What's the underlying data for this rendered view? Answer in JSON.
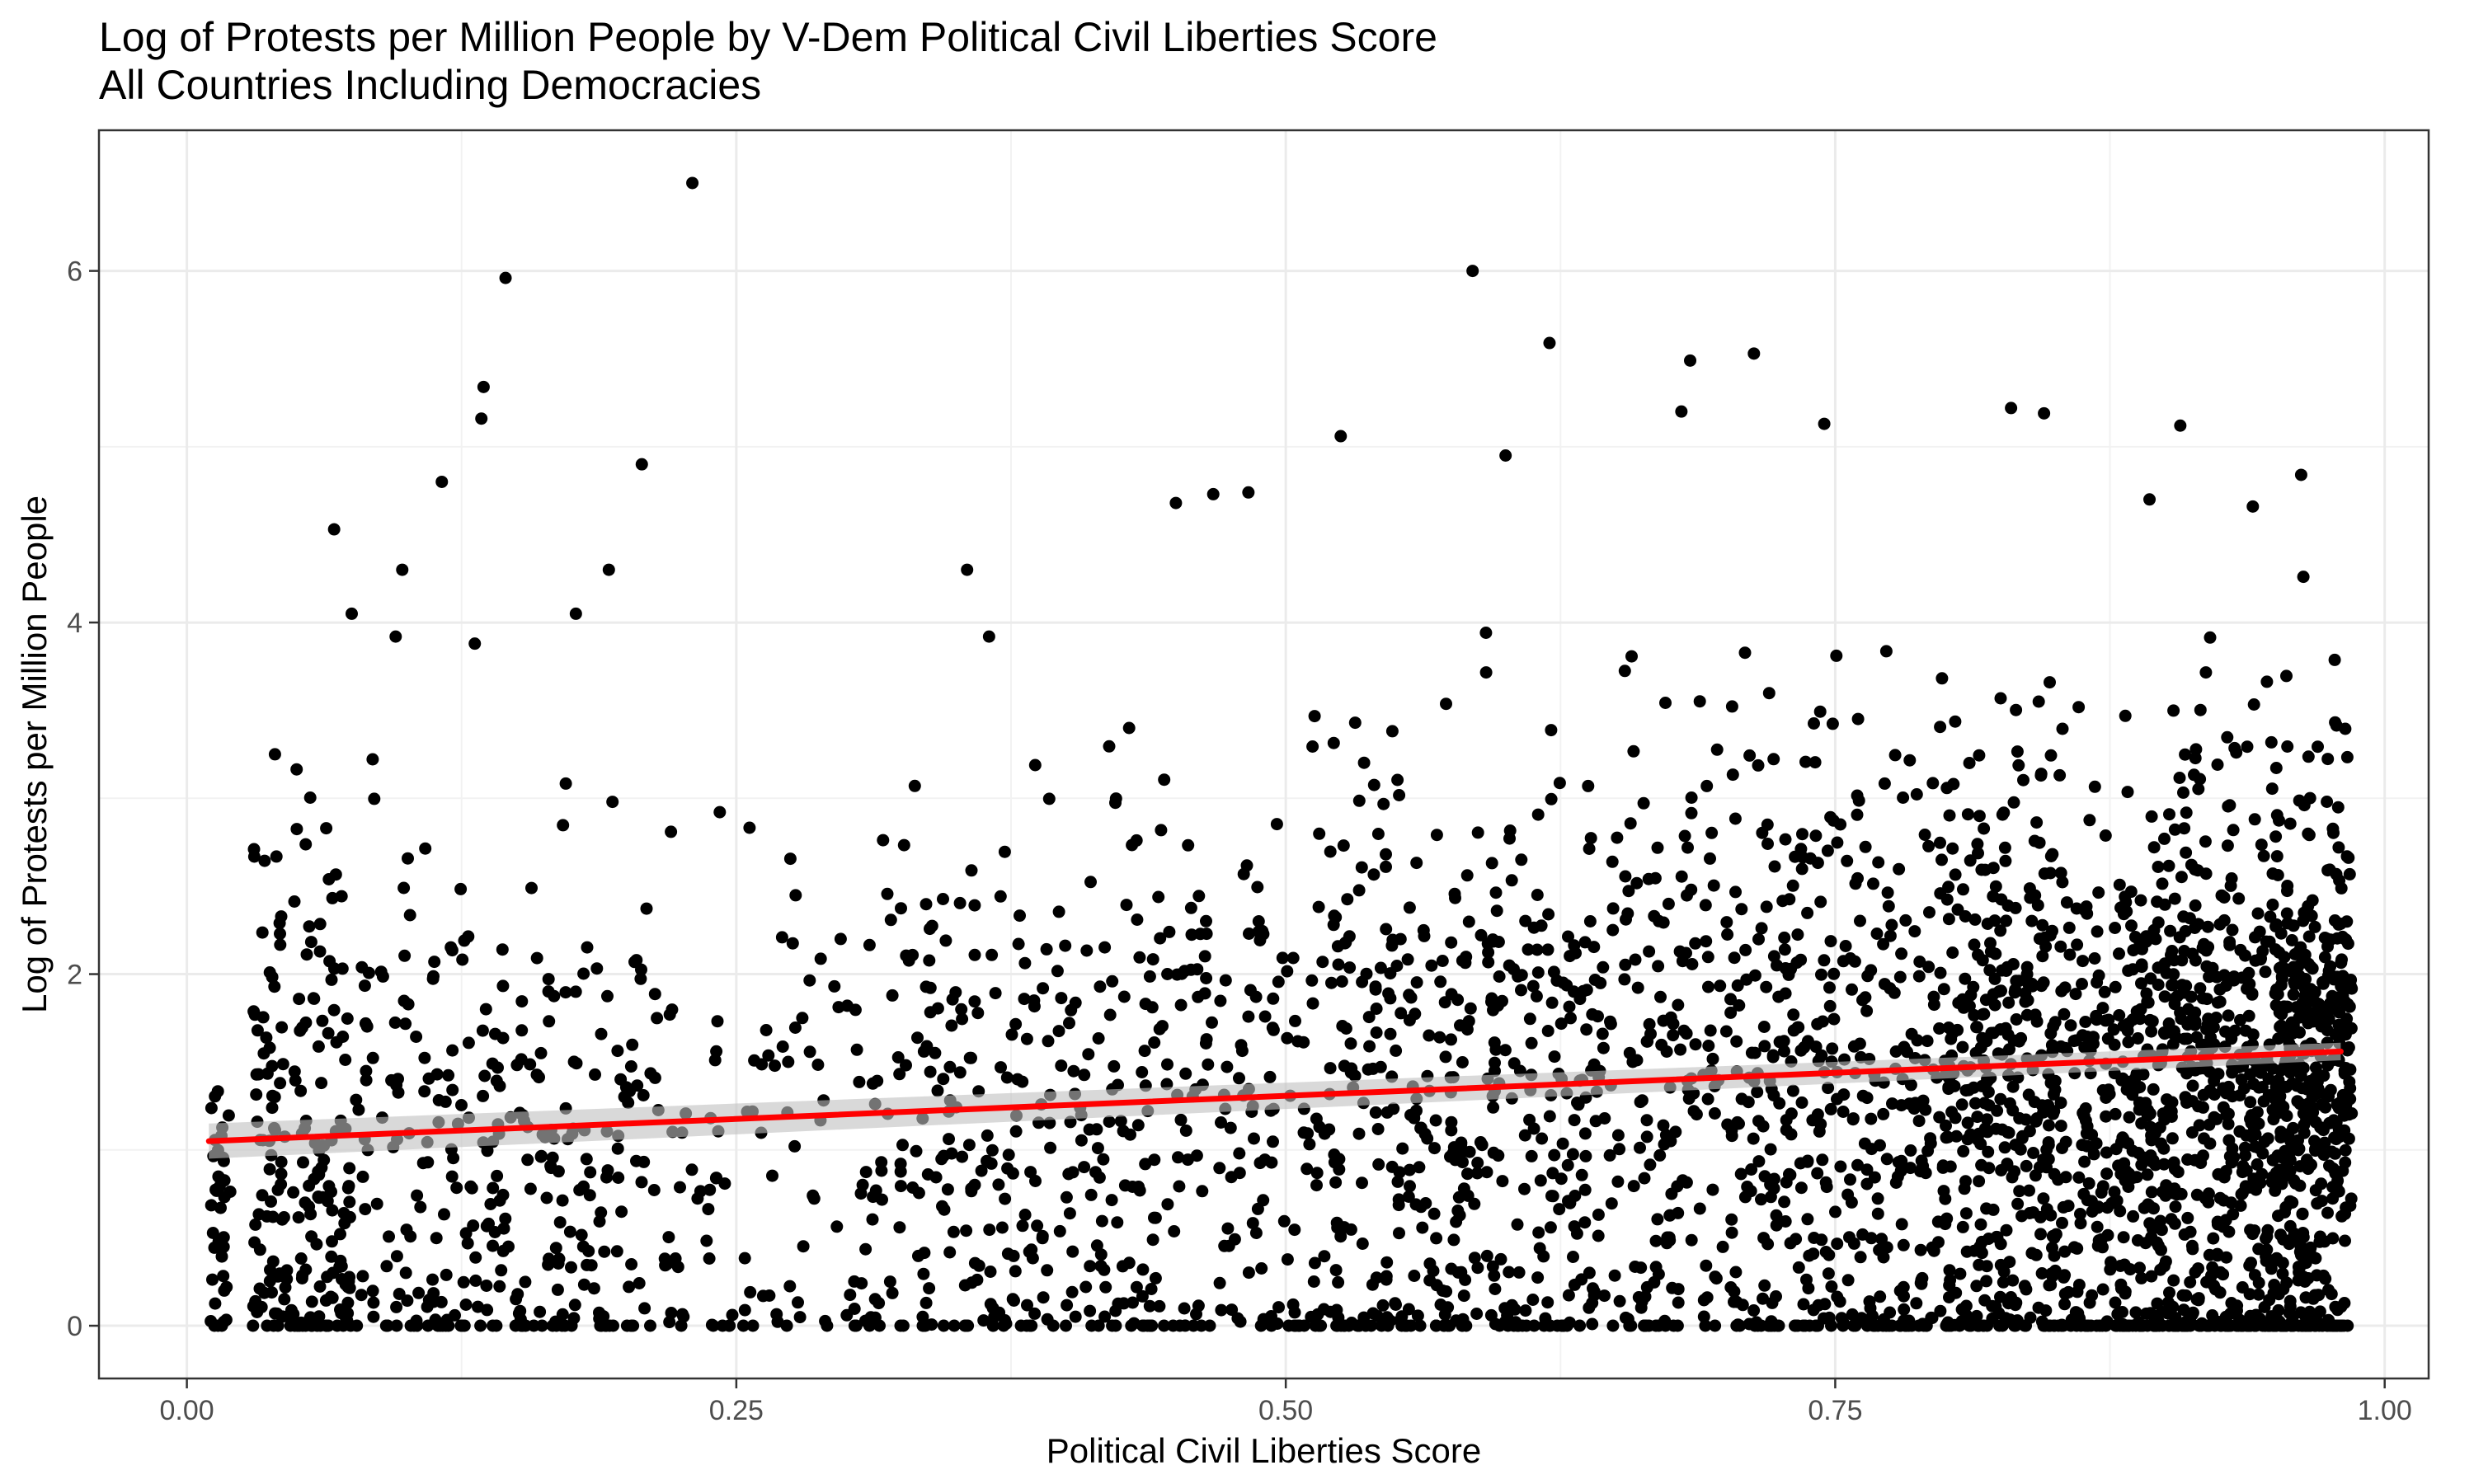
{
  "chart_data": {
    "type": "scatter",
    "title": "Log of Protests per Million People by V-Dem Political Civil Liberties Score",
    "subtitle": "All Countries Including Democracies",
    "xlabel": "Political Civil Liberties Score",
    "ylabel": "Log of Protests per Million People",
    "xlim": [
      -0.04,
      1.02
    ],
    "ylim": [
      -0.3,
      6.8
    ],
    "x_ticks": [
      0.0,
      0.25,
      0.5,
      0.75,
      1.0
    ],
    "x_tick_labels": [
      "0.00",
      "0.25",
      "0.50",
      "0.75",
      "1.00"
    ],
    "y_ticks": [
      0,
      2,
      4,
      6
    ],
    "y_tick_labels": [
      "0",
      "2",
      "4",
      "6"
    ],
    "grid": true,
    "point_color": "#000000",
    "trend_line": {
      "color": "#ff0000",
      "band_color": "#c0c0c0",
      "x": [
        0.01,
        0.98
      ],
      "y": [
        1.05,
        1.56
      ]
    },
    "outliers": [
      {
        "x": 0.23,
        "y": 6.5
      },
      {
        "x": 0.145,
        "y": 5.96
      },
      {
        "x": 0.585,
        "y": 6.0
      },
      {
        "x": 0.135,
        "y": 5.34
      },
      {
        "x": 0.134,
        "y": 5.16
      },
      {
        "x": 0.62,
        "y": 5.59
      },
      {
        "x": 0.713,
        "y": 5.53
      },
      {
        "x": 0.684,
        "y": 5.49
      },
      {
        "x": 0.525,
        "y": 5.06
      },
      {
        "x": 0.83,
        "y": 5.22
      },
      {
        "x": 0.845,
        "y": 5.19
      },
      {
        "x": 0.907,
        "y": 5.12
      },
      {
        "x": 0.68,
        "y": 5.2
      },
      {
        "x": 0.745,
        "y": 5.13
      },
      {
        "x": 0.207,
        "y": 4.9
      },
      {
        "x": 0.116,
        "y": 4.8
      },
      {
        "x": 0.6,
        "y": 4.95
      },
      {
        "x": 0.962,
        "y": 4.84
      },
      {
        "x": 0.067,
        "y": 4.53
      },
      {
        "x": 0.098,
        "y": 4.3
      },
      {
        "x": 0.192,
        "y": 4.3
      },
      {
        "x": 0.075,
        "y": 4.05
      },
      {
        "x": 0.177,
        "y": 4.05
      },
      {
        "x": 0.355,
        "y": 4.3
      },
      {
        "x": 0.095,
        "y": 3.92
      },
      {
        "x": 0.131,
        "y": 3.88
      },
      {
        "x": 0.365,
        "y": 3.92
      },
      {
        "x": 0.45,
        "y": 4.68
      },
      {
        "x": 0.467,
        "y": 4.73
      },
      {
        "x": 0.483,
        "y": 4.74
      },
      {
        "x": 0.893,
        "y": 4.7
      },
      {
        "x": 0.94,
        "y": 4.66
      },
      {
        "x": 0.963,
        "y": 4.26
      }
    ],
    "clusters": [
      {
        "x0": 0.01,
        "x1": 0.02,
        "n": 38,
        "yc": 0.75,
        "ys": 0.45
      },
      {
        "x0": 0.03,
        "x1": 0.075,
        "n": 210,
        "yc": 1.0,
        "ys": 0.85
      },
      {
        "x0": 0.075,
        "x1": 0.13,
        "n": 120,
        "yc": 0.95,
        "ys": 0.85
      },
      {
        "x0": 0.13,
        "x1": 0.21,
        "n": 180,
        "yc": 0.85,
        "ys": 0.8
      },
      {
        "x0": 0.21,
        "x1": 0.33,
        "n": 150,
        "yc": 1.05,
        "ys": 0.9
      },
      {
        "x0": 0.33,
        "x1": 0.42,
        "n": 210,
        "yc": 1.15,
        "ys": 0.9
      },
      {
        "x0": 0.42,
        "x1": 0.52,
        "n": 230,
        "yc": 1.2,
        "ys": 0.95
      },
      {
        "x0": 0.52,
        "x1": 0.6,
        "n": 290,
        "yc": 1.25,
        "ys": 0.95
      },
      {
        "x0": 0.6,
        "x1": 0.7,
        "n": 320,
        "yc": 1.3,
        "ys": 1.0
      },
      {
        "x0": 0.7,
        "x1": 0.8,
        "n": 420,
        "yc": 1.35,
        "ys": 1.0
      },
      {
        "x0": 0.8,
        "x1": 0.88,
        "n": 520,
        "yc": 1.3,
        "ys": 0.95
      },
      {
        "x0": 0.88,
        "x1": 0.95,
        "n": 620,
        "yc": 1.35,
        "ys": 0.85
      },
      {
        "x0": 0.95,
        "x1": 0.985,
        "n": 480,
        "yc": 1.45,
        "ys": 0.8
      }
    ]
  }
}
